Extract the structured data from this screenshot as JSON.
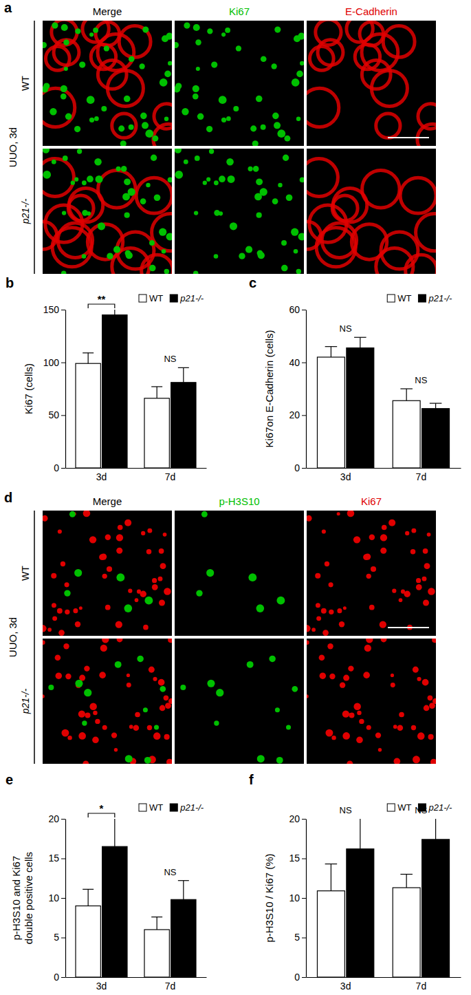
{
  "image_panels": [
    {
      "title": "a",
      "condition": "UUO, 3d",
      "columns": [
        {
          "text": "Merge",
          "color": "#000000"
        },
        {
          "text": "Ki67",
          "color": "#00c000"
        },
        {
          "text": "E-Cadherin",
          "color": "#e00000"
        }
      ],
      "rows": [
        "WT",
        "p21-/-"
      ]
    },
    {
      "title": "d",
      "condition": "UUO, 3d",
      "columns": [
        {
          "text": "Merge",
          "color": "#000000"
        },
        {
          "text": "p-H3S10",
          "color": "#00c000"
        },
        {
          "text": "Ki67",
          "color": "#e00000"
        }
      ],
      "rows": [
        "WT",
        "p21-/-"
      ]
    }
  ],
  "chart_data": [
    {
      "type": "bar",
      "title": "b",
      "y_label": "Ki67 (cells)",
      "categories": [
        "3d",
        "7d"
      ],
      "series": [
        {
          "name": "WT",
          "color": "#ffffff",
          "values": [
            99,
            66
          ],
          "errors": [
            10,
            11
          ]
        },
        {
          "name": "p21-/-",
          "color": "#000000",
          "values": [
            145,
            81
          ],
          "errors": [
            6,
            14
          ]
        }
      ],
      "ylim": [
        0,
        150
      ],
      "yticks": [
        0,
        50,
        100,
        150
      ],
      "legend": "top-right",
      "annotations": [
        {
          "text": "**",
          "category": "3d",
          "type": "bracket"
        },
        {
          "text": "NS",
          "category": "7d",
          "type": "label"
        }
      ]
    },
    {
      "type": "bar",
      "title": "c",
      "y_label": "Ki67on E-Cadherin (cells)",
      "categories": [
        "3d",
        "7d"
      ],
      "series": [
        {
          "name": "WT",
          "color": "#ffffff",
          "values": [
            42,
            25.5
          ],
          "errors": [
            4,
            4.5
          ]
        },
        {
          "name": "p21-/-",
          "color": "#000000",
          "values": [
            45.5,
            22.5
          ],
          "errors": [
            4,
            2
          ]
        }
      ],
      "ylim": [
        0,
        60
      ],
      "yticks": [
        0,
        20,
        40,
        60
      ],
      "legend": "top-right",
      "annotations": [
        {
          "text": "NS",
          "category": "3d",
          "type": "label"
        },
        {
          "text": "NS",
          "category": "7d",
          "type": "label"
        }
      ]
    },
    {
      "type": "bar",
      "title": "e",
      "y_label": [
        "p-H3S10 and Ki67",
        "double positive cells"
      ],
      "categories": [
        "3d",
        "7d"
      ],
      "series": [
        {
          "name": "WT",
          "color": "#ffffff",
          "values": [
            9,
            6
          ],
          "errors": [
            2.1,
            1.6
          ]
        },
        {
          "name": "p21-/-",
          "color": "#000000",
          "values": [
            16.5,
            9.8
          ],
          "errors": [
            3.8,
            2.4
          ]
        }
      ],
      "ylim": [
        0,
        20
      ],
      "yticks": [
        0,
        5,
        10,
        15,
        20
      ],
      "legend": "top-right",
      "annotations": [
        {
          "text": "*",
          "category": "3d",
          "type": "bracket"
        },
        {
          "text": "NS",
          "category": "7d",
          "type": "label"
        }
      ]
    },
    {
      "type": "bar",
      "title": "f",
      "y_label": "p-H3S10 / Ki67 (%)",
      "categories": [
        "3d",
        "7d"
      ],
      "series": [
        {
          "name": "WT",
          "color": "#ffffff",
          "values": [
            10.9,
            11.3
          ],
          "errors": [
            3.4,
            1.7
          ]
        },
        {
          "name": "p21-/-",
          "color": "#000000",
          "values": [
            16.2,
            17.4
          ],
          "errors": [
            4,
            3
          ]
        }
      ],
      "ylim": [
        0,
        20
      ],
      "yticks": [
        0,
        5,
        10,
        15,
        20
      ],
      "legend": "top-right",
      "annotations": [
        {
          "text": "NS",
          "category": "3d",
          "type": "label"
        },
        {
          "text": "NS",
          "category": "7d",
          "type": "label"
        }
      ]
    }
  ]
}
